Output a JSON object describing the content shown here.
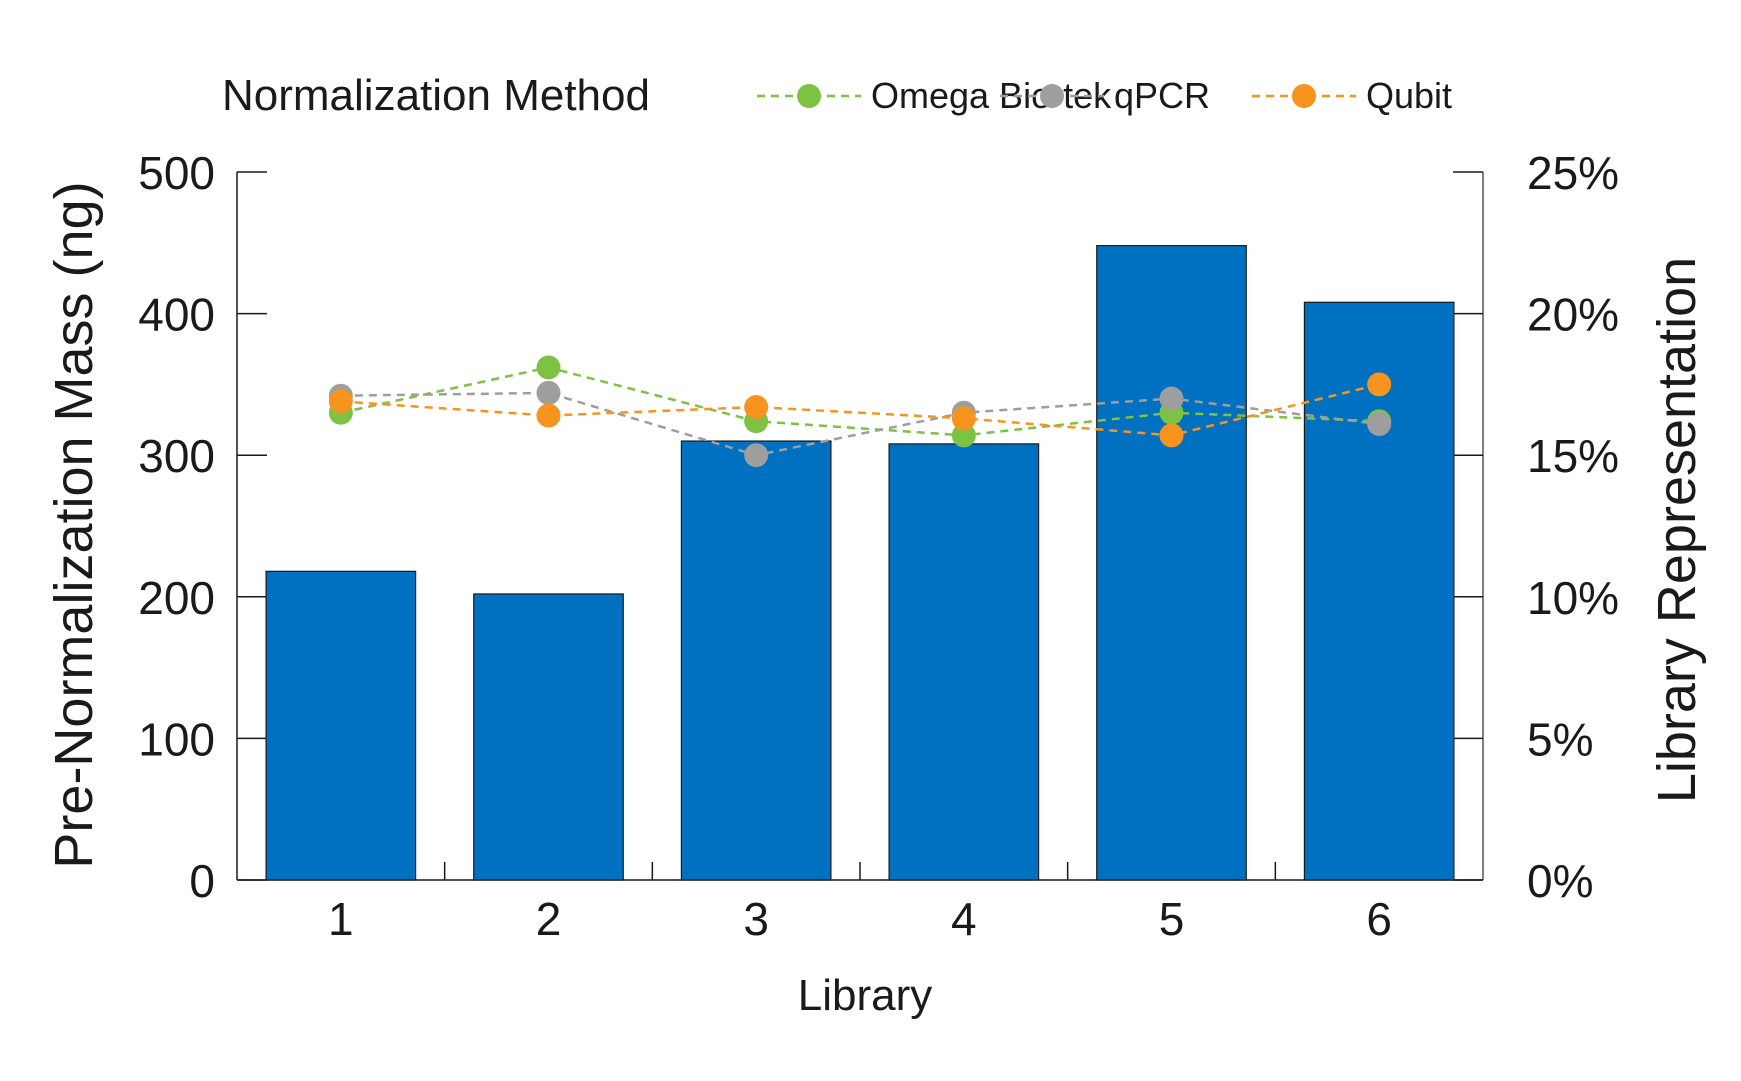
{
  "chart_data": {
    "type": "bar",
    "categories": [
      "1",
      "2",
      "3",
      "4",
      "5",
      "6"
    ],
    "xlabel": "Library",
    "ylabel": "Pre-Normalization Mass (ng)",
    "y2label": "Library Representation",
    "ylim": [
      0,
      500
    ],
    "yticks": [
      "0",
      "100",
      "200",
      "300",
      "400",
      "500"
    ],
    "y2lim": [
      0,
      25
    ],
    "y2ticks": [
      "0%",
      "5%",
      "10%",
      "15%",
      "20%",
      "25%"
    ],
    "grid": false,
    "bar_color": "#0070C0",
    "bars": {
      "values": [
        218,
        202,
        310,
        308,
        448,
        408
      ]
    },
    "legend": {
      "title": "Normalization Method",
      "placement": "top"
    },
    "series": [
      {
        "name": "Omega Bio-tek",
        "type": "line",
        "axis": "right",
        "color": "#7DC242",
        "values": [
          16.5,
          18.1,
          16.2,
          15.7,
          16.5,
          16.2
        ]
      },
      {
        "name": "qPCR",
        "type": "line",
        "axis": "right",
        "color": "#9E9E9E",
        "values": [
          17.1,
          17.2,
          15.0,
          16.5,
          17.0,
          16.1
        ]
      },
      {
        "name": "Qubit",
        "type": "line",
        "axis": "right",
        "color": "#F7941D",
        "values": [
          16.9,
          16.4,
          16.7,
          16.3,
          15.7,
          17.5
        ]
      }
    ]
  }
}
